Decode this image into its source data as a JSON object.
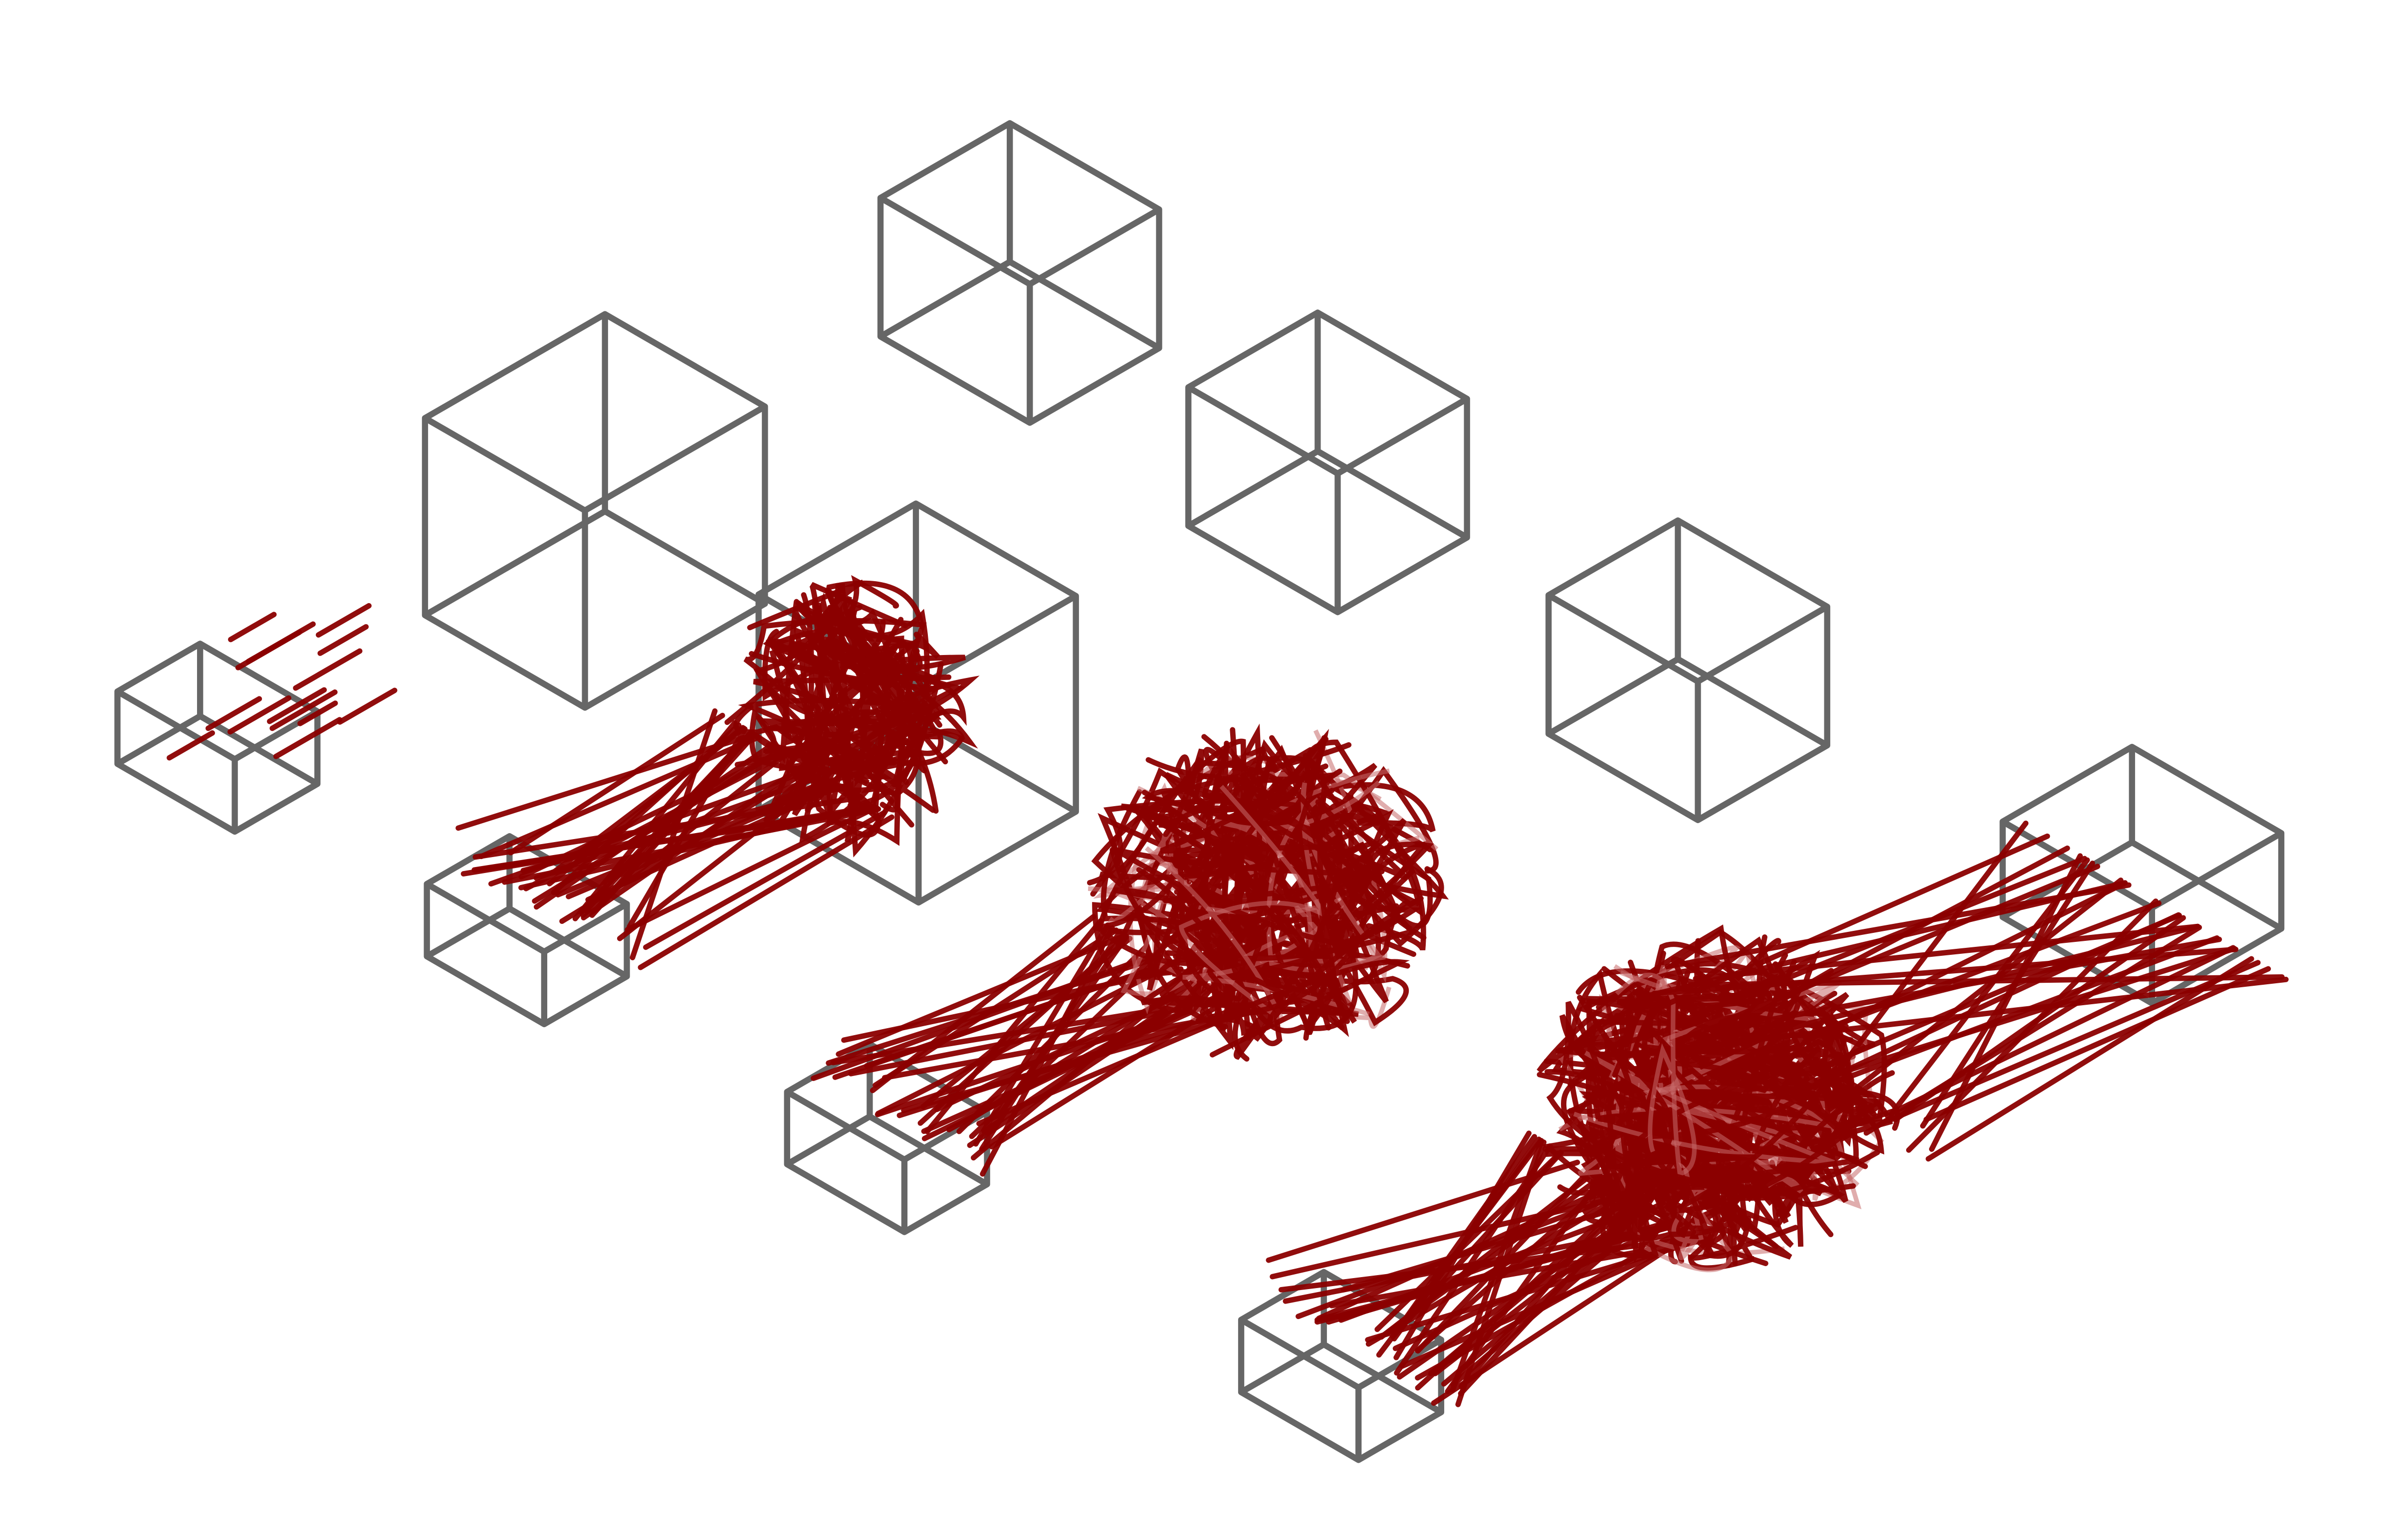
{
  "diagram": {
    "description": "",
    "colors": {
      "background": "#ffffff",
      "box_outline": "#666666",
      "strand": "#8b0000",
      "strand_faint": "#c76a6a"
    },
    "strand_groups": {
      "stage-1-scatter": 14,
      "stage-2-fan": 36,
      "stage-2-knot": 40,
      "stage-3-fan": 34,
      "stage-3-knot": 70,
      "stage-4-fan": 40,
      "stage-4-knot": 110,
      "stage-4-out": 30
    }
  }
}
